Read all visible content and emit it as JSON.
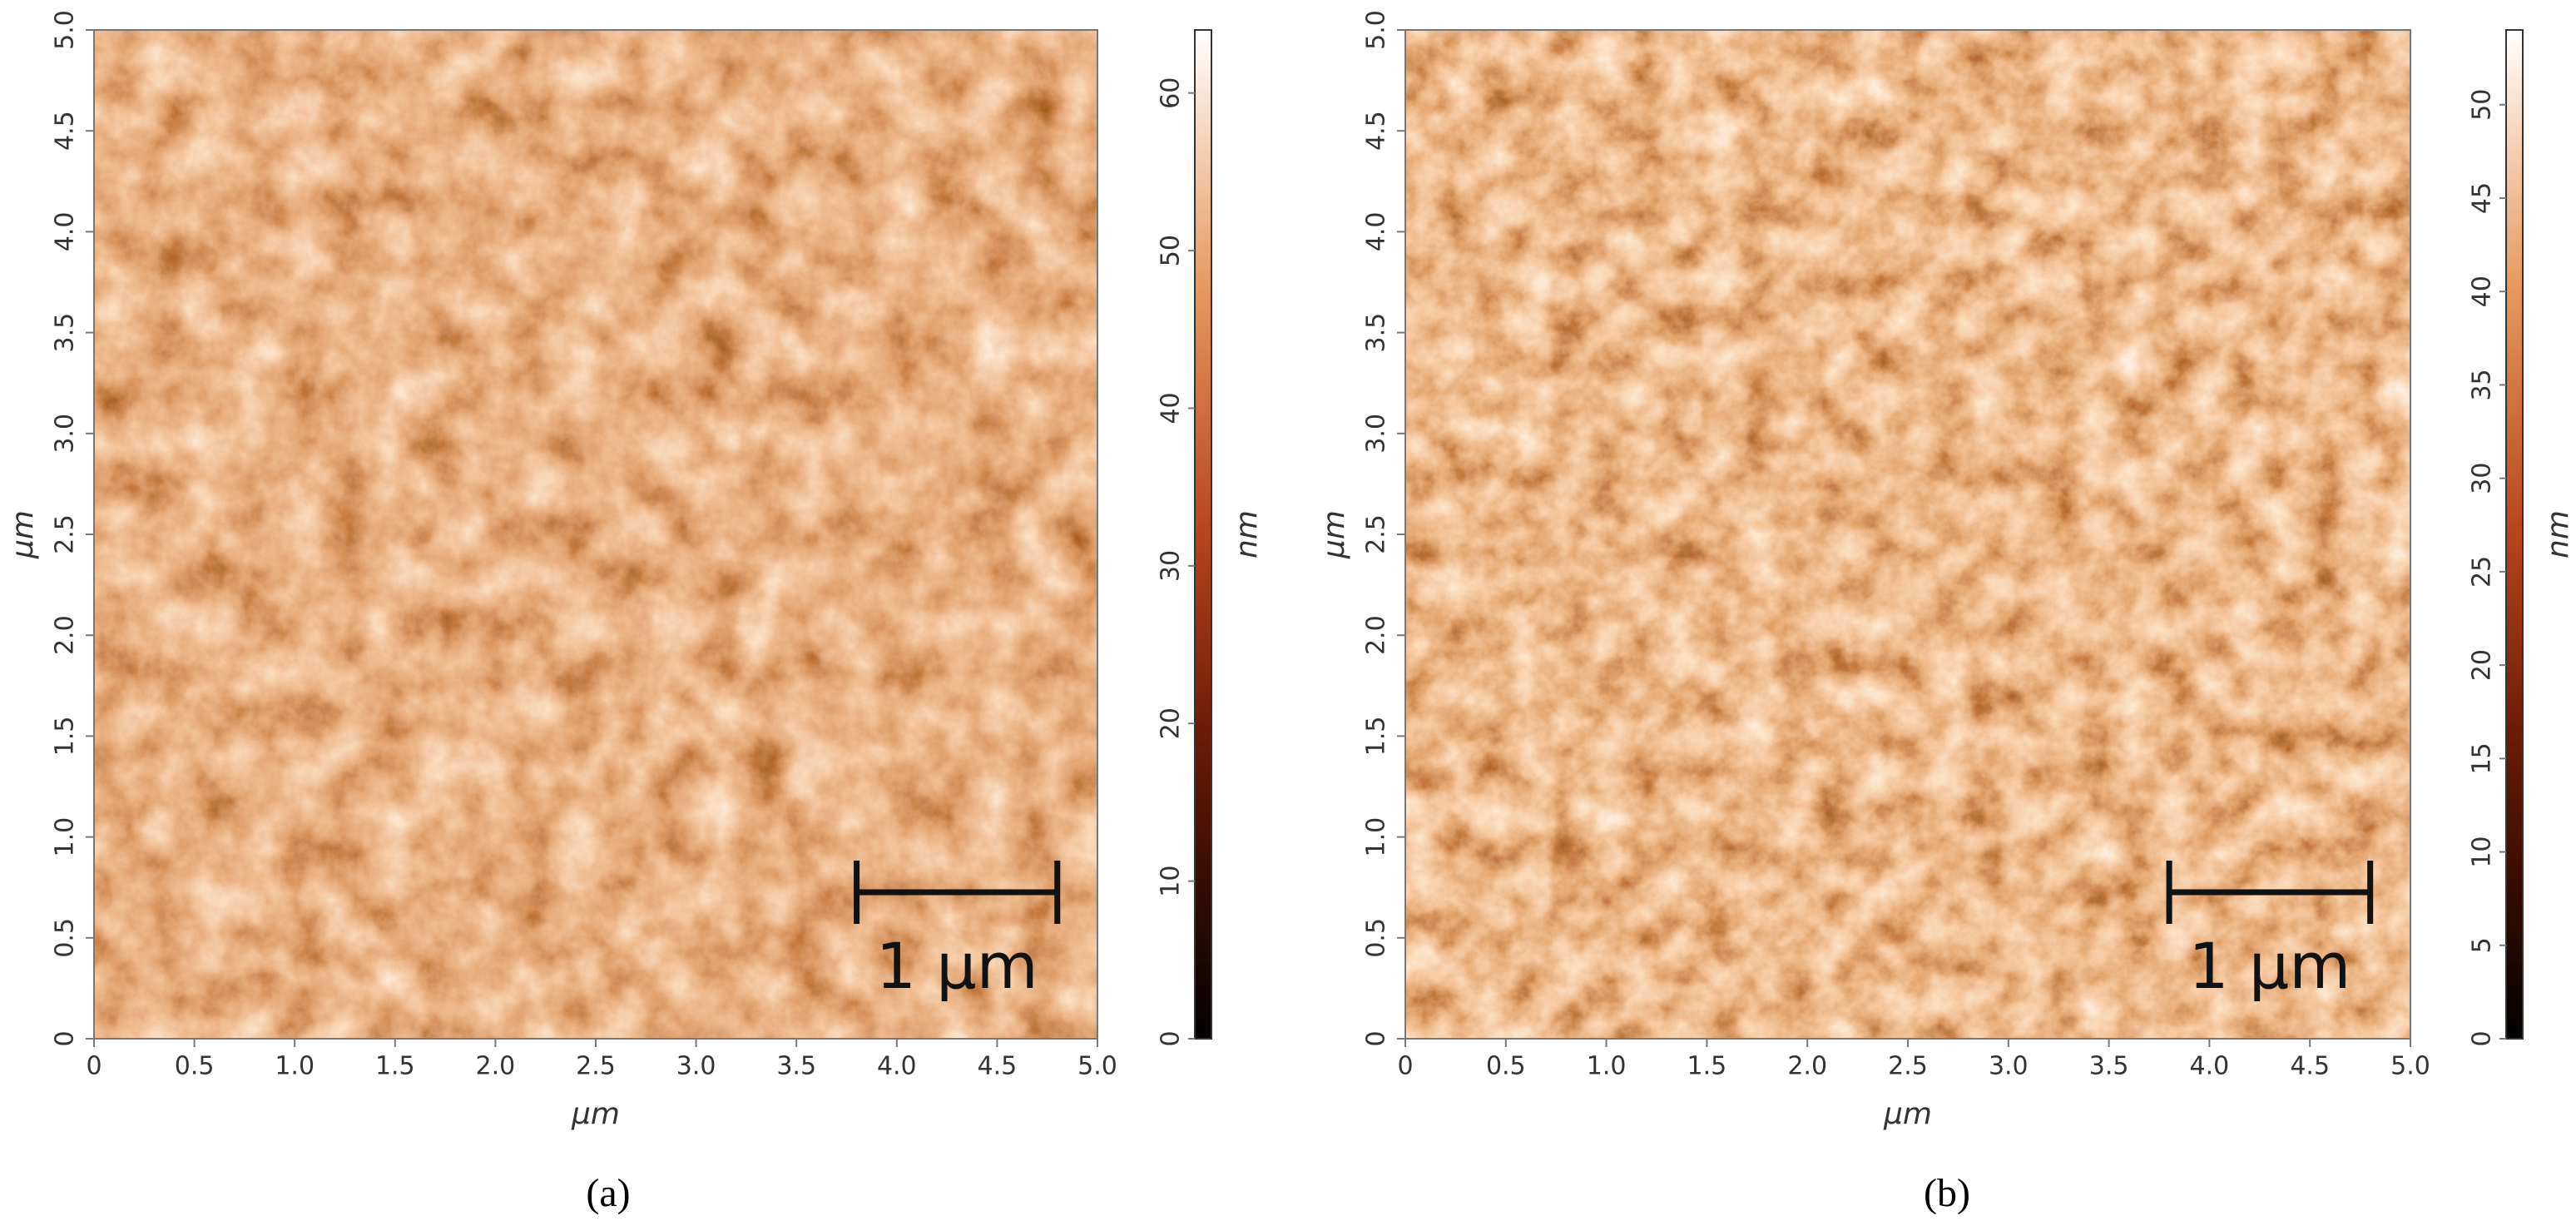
{
  "chart_data": [
    {
      "type": "image",
      "panel_label": "(a)",
      "xlabel": "µm",
      "ylabel": "µm",
      "xlim": [
        0,
        5
      ],
      "ylim": [
        0,
        5
      ],
      "xticks": [
        0,
        0.5,
        {
          "value": 1,
          "label": "1.0"
        },
        1.5,
        {
          "value": 2,
          "label": "2.0"
        },
        2.5,
        {
          "value": 3,
          "label": "3.0"
        },
        3.5,
        {
          "value": 4,
          "label": "4.0"
        },
        4.5,
        {
          "value": 5,
          "label": "5.0"
        }
      ],
      "yticks": [
        0,
        0.5,
        {
          "value": 1,
          "label": "1.0"
        },
        1.5,
        {
          "value": 2,
          "label": "2.0"
        },
        2.5,
        {
          "value": 3,
          "label": "3.0"
        },
        3.5,
        {
          "value": 4,
          "label": "4.0"
        },
        4.5,
        {
          "value": 5,
          "label": "5.0"
        }
      ],
      "colorbar_label": "nm",
      "zlim": [
        0,
        64
      ],
      "zticks": [
        0,
        10,
        20,
        30,
        40,
        50,
        60
      ],
      "scale_bar": {
        "label": "1 µm",
        "x": [
          3.8,
          4.8
        ]
      }
    },
    {
      "type": "image",
      "panel_label": "(b)",
      "xlabel": "µm",
      "ylabel": "µm",
      "xlim": [
        0,
        5
      ],
      "ylim": [
        0,
        5
      ],
      "xticks": [
        0,
        0.5,
        {
          "value": 1,
          "label": "1.0"
        },
        1.5,
        {
          "value": 2,
          "label": "2.0"
        },
        2.5,
        {
          "value": 3,
          "label": "3.0"
        },
        3.5,
        {
          "value": 4,
          "label": "4.0"
        },
        4.5,
        {
          "value": 5,
          "label": "5.0"
        }
      ],
      "yticks": [
        0,
        0.5,
        {
          "value": 1,
          "label": "1.0"
        },
        1.5,
        {
          "value": 2,
          "label": "2.0"
        },
        2.5,
        {
          "value": 3,
          "label": "3.0"
        },
        3.5,
        {
          "value": 4,
          "label": "4.0"
        },
        4.5,
        {
          "value": 5,
          "label": "5.0"
        }
      ],
      "colorbar_label": "nm",
      "zlim": [
        0,
        54
      ],
      "zticks": [
        0,
        5,
        10,
        15,
        20,
        25,
        30,
        35,
        40,
        45,
        50
      ],
      "scale_bar": {
        "label": "1 µm",
        "x": [
          3.8,
          4.8
        ]
      }
    }
  ]
}
